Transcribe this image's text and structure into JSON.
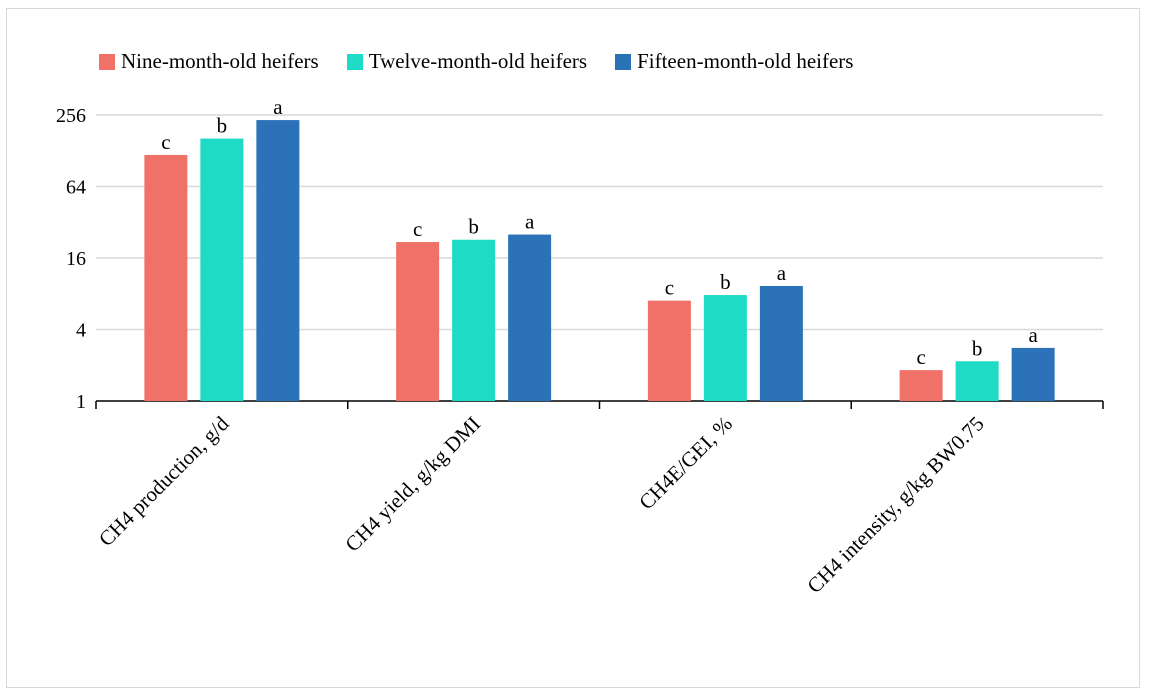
{
  "chart_data": {
    "type": "bar",
    "title": "",
    "xlabel": "",
    "ylabel": "",
    "yscale": "log2",
    "yticks": [
      "1",
      "4",
      "16",
      "64",
      "256"
    ],
    "ylim": [
      1,
      256
    ],
    "grid": true,
    "legend_position": "top",
    "categories": [
      "CH4 production, g/d",
      "CH4 yield, g/kg DMI",
      "CH4E/GEI, %",
      "CH4 intensity, g/kg BW0.75"
    ],
    "series": [
      {
        "name": "Nine-month-old heifers",
        "color": "#f07167",
        "values": [
          118,
          21.8,
          7.0,
          1.82
        ],
        "labels": [
          "c",
          "c",
          "c",
          "c"
        ]
      },
      {
        "name": "Twelve-month-old heifers",
        "color": "#1ddbc4",
        "values": [
          162,
          22.8,
          7.8,
          2.16
        ],
        "labels": [
          "b",
          "b",
          "b",
          "b"
        ]
      },
      {
        "name": "Fifteen-month-old heifers",
        "color": "#2b72b8",
        "values": [
          232,
          25.2,
          9.3,
          2.8
        ],
        "labels": [
          "a",
          "a",
          "a",
          "a"
        ]
      }
    ]
  }
}
